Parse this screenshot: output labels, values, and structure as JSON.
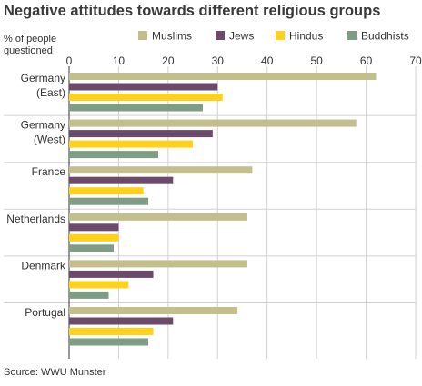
{
  "chart_data": {
    "type": "bar",
    "orientation": "horizontal",
    "title": "Negative attitudes towards different religious groups",
    "xlabel": "% of people questioned",
    "ylabel": "",
    "xlim": [
      0,
      70
    ],
    "xticks": [
      0,
      10,
      20,
      30,
      40,
      50,
      60,
      70
    ],
    "grid": true,
    "legend_position": "top",
    "categories": [
      "Germany (East)",
      "Germany (West)",
      "France",
      "Netherlands",
      "Denmark",
      "Portugal"
    ],
    "category_lines": [
      [
        "Germany",
        "(East)"
      ],
      [
        "Germany",
        "(West)"
      ],
      [
        "France"
      ],
      [
        "Netherlands"
      ],
      [
        "Denmark"
      ],
      [
        "Portugal"
      ]
    ],
    "series": [
      {
        "name": "Muslims",
        "color": "#c2bf8c",
        "values": [
          62,
          58,
          37,
          36,
          36,
          34
        ]
      },
      {
        "name": "Jews",
        "color": "#6b4a6b",
        "values": [
          30,
          29,
          21,
          10,
          17,
          21
        ]
      },
      {
        "name": "Hindus",
        "color": "#ffd11a",
        "values": [
          31,
          25,
          15,
          10,
          12,
          17
        ]
      },
      {
        "name": "Buddhists",
        "color": "#7f9c84",
        "values": [
          27,
          18,
          16,
          9,
          8,
          16
        ]
      }
    ]
  },
  "source": "Source: WWU Munster"
}
